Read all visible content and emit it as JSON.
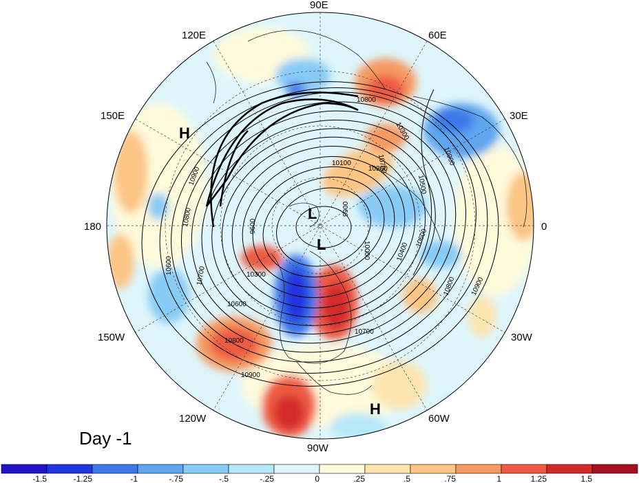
{
  "map": {
    "projection": "polar stereographic, north pole centred",
    "day_label": "Day -1",
    "longitude_labels": [
      "90E",
      "60E",
      "30E",
      "0",
      "30W",
      "60W",
      "90W",
      "120W",
      "150W",
      "180",
      "150E",
      "120E"
    ],
    "contour_labels": [
      "10800",
      "10900",
      "10300",
      "10200",
      "10100",
      "10000",
      "10500",
      "10700",
      "10600",
      "10400",
      "10900",
      "10800",
      "10900",
      "10800",
      "10700",
      "10600",
      "10300",
      "9900",
      "9600",
      "10700",
      "10800",
      "10900",
      "10600"
    ],
    "pressure_centers": [
      {
        "type": "H",
        "name": "high-west-pacific"
      },
      {
        "type": "L",
        "name": "low-pole-1"
      },
      {
        "type": "L",
        "name": "low-pole-2"
      },
      {
        "type": "H",
        "name": "high-caribbean"
      }
    ]
  },
  "colorbar": {
    "tick_labels": [
      "-1.5",
      "-1.25",
      "-1",
      "-.75",
      "-.5",
      "-.25",
      "0",
      ".25",
      ".5",
      ".75",
      "1",
      "1.25",
      "1.5"
    ],
    "colors": [
      "#1f14c8",
      "#2036e0",
      "#3d78ea",
      "#5fa6ef",
      "#88cbf5",
      "#b6e8f8",
      "#def6fb",
      "#fefadb",
      "#fde5b0",
      "#fbc584",
      "#f59a62",
      "#ee5a42",
      "#d42a2a",
      "#a80e22"
    ]
  }
}
